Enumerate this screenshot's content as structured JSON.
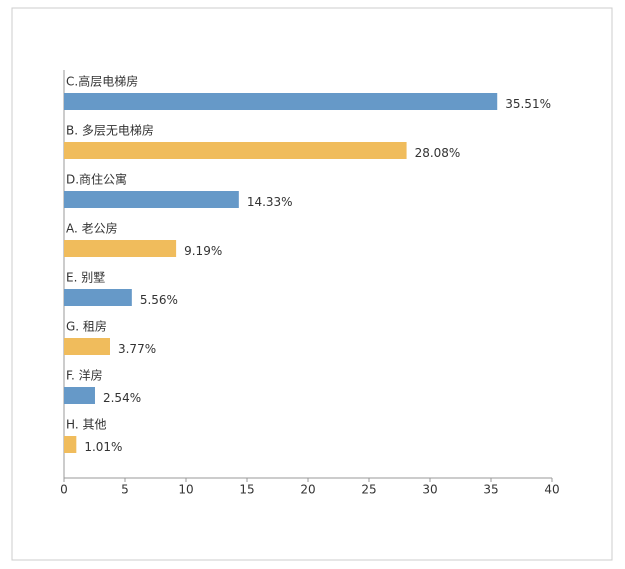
{
  "chart_data": {
    "type": "bar",
    "orientation": "horizontal",
    "categories": [
      "C.高层电梯房",
      "B. 多层无电梯房",
      "D.商住公寓",
      "A. 老公房",
      "E. 别墅",
      "G. 租房",
      "F. 洋房",
      "H. 其他"
    ],
    "values": [
      35.51,
      28.08,
      14.33,
      9.19,
      5.56,
      3.77,
      2.54,
      1.01
    ],
    "value_labels": [
      "35.51%",
      "28.08%",
      "14.33%",
      "9.19%",
      "5.56%",
      "3.77%",
      "2.54%",
      "1.01%"
    ],
    "colors": [
      "#6699c8",
      "#f0bc5c",
      "#6699c8",
      "#f0bc5c",
      "#6699c8",
      "#f0bc5c",
      "#6699c8",
      "#f0bc5c"
    ],
    "xlim": [
      0,
      40
    ],
    "xticks": [
      0,
      5,
      10,
      15,
      20,
      25,
      30,
      35,
      40
    ]
  }
}
